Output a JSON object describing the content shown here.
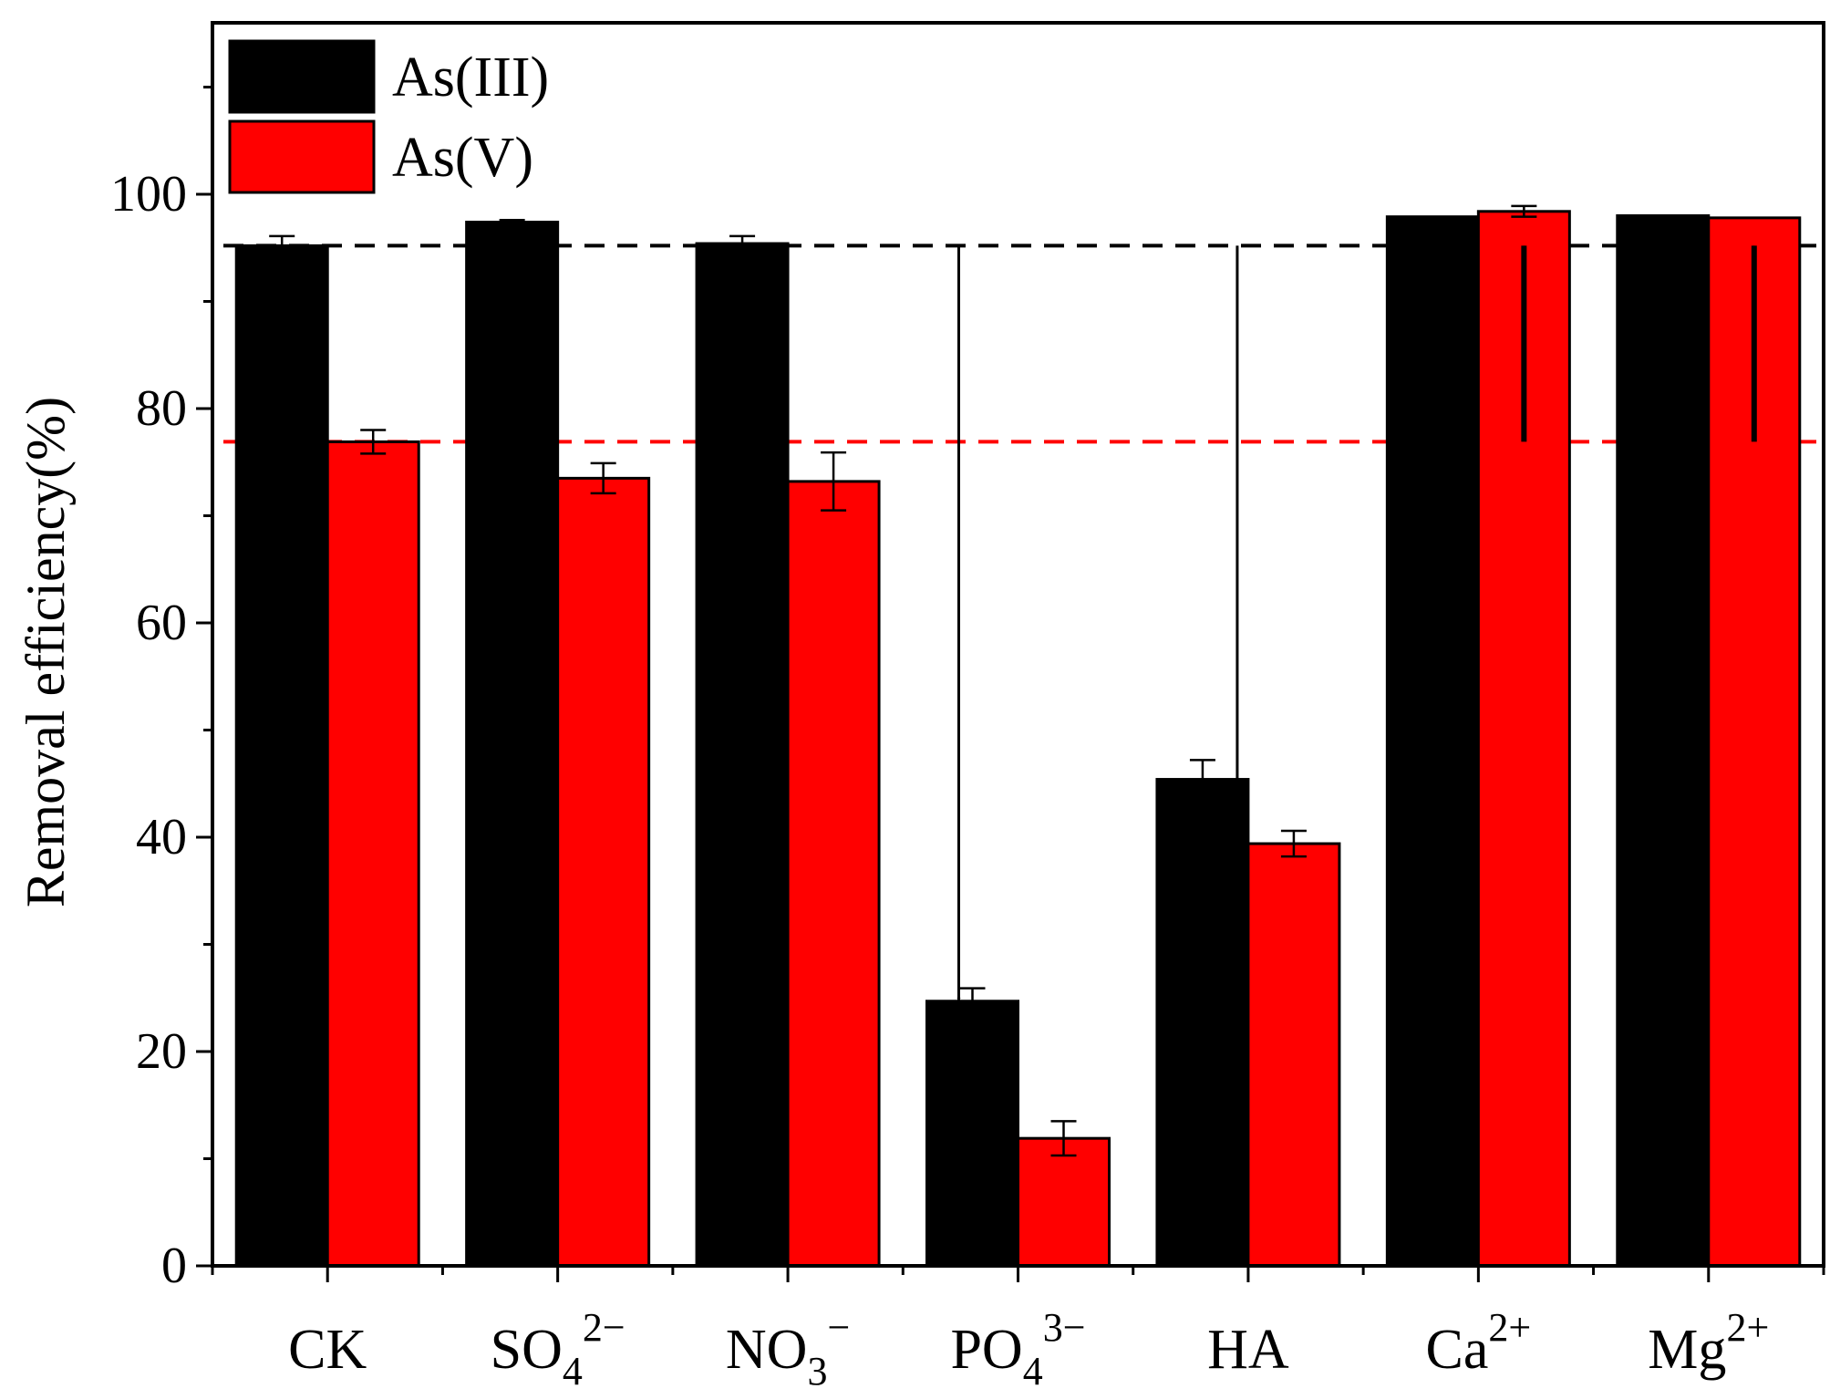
{
  "chart_data": {
    "type": "bar",
    "title": "",
    "xlabel": "",
    "ylabel": "Removal efficiency(%)",
    "ylim": [
      0,
      116
    ],
    "yticks": [
      0,
      20,
      40,
      60,
      80,
      100
    ],
    "categories": [
      {
        "base": "CK",
        "sub": "",
        "sup": ""
      },
      {
        "base": "SO",
        "sub": "4",
        "sup": "2−"
      },
      {
        "base": "NO",
        "sub": "3",
        "sup": "−"
      },
      {
        "base": "PO",
        "sub": "4",
        "sup": "3−"
      },
      {
        "base": "HA",
        "sub": "",
        "sup": ""
      },
      {
        "base": "Ca",
        "sub": "",
        "sup": "2+"
      },
      {
        "base": "Mg",
        "sub": "",
        "sup": "2+"
      }
    ],
    "series": [
      {
        "name": "As(III)",
        "color": "#000000",
        "values": [
          95.2,
          97.4,
          95.4,
          24.7,
          45.4,
          97.9,
          98.0
        ],
        "errors": [
          0.9,
          0.2,
          0.7,
          1.2,
          1.8,
          0.0,
          0.0
        ]
      },
      {
        "name": "As(V)",
        "color": "#ff0000",
        "values": [
          76.9,
          73.5,
          73.2,
          11.9,
          39.4,
          98.4,
          97.8
        ],
        "errors": [
          1.1,
          1.4,
          2.7,
          1.6,
          1.2,
          0.5,
          0.0
        ]
      }
    ],
    "reference_lines": [
      {
        "series": "As(III)",
        "value": 95.2,
        "color": "#000000",
        "style": "dashed"
      },
      {
        "series": "As(V)",
        "value": 76.9,
        "color": "#ff0000",
        "style": "dashed"
      }
    ],
    "annotations": [
      {
        "type": "arrow",
        "category": "PO",
        "from": 95.2,
        "to": 24.7,
        "anchor": "As(III)"
      },
      {
        "type": "arrow",
        "category": "HA",
        "from": 95.2,
        "to": 39.4,
        "anchor": "As(V)"
      },
      {
        "type": "arrow",
        "category": "Ca",
        "from": 76.9,
        "to": 95.2,
        "anchor": "As(V)",
        "bold": true
      },
      {
        "type": "arrow",
        "category": "Mg",
        "from": 76.9,
        "to": 95.2,
        "anchor": "As(V)",
        "bold": true
      }
    ],
    "legend": {
      "position": "top-left"
    }
  }
}
